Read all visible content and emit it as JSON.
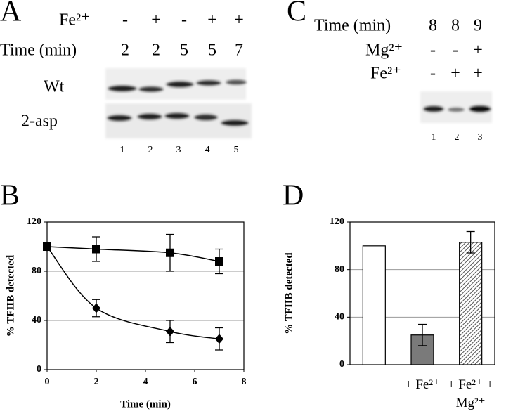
{
  "panels": {
    "A": {
      "letter": "A",
      "rows": [
        {
          "label": "Fe²⁺",
          "values": [
            "-",
            "+",
            "-",
            "+",
            "+"
          ]
        },
        {
          "label": "Time (min)",
          "values": [
            2,
            2,
            5,
            5,
            7
          ]
        }
      ],
      "blots": [
        "Wt",
        "2-asp"
      ],
      "lanes": [
        1,
        2,
        3,
        4,
        5
      ]
    },
    "C": {
      "letter": "C",
      "rows": [
        {
          "label": "Time (min)",
          "values": [
            8,
            8,
            9
          ]
        },
        {
          "label": "Mg²⁺",
          "values": [
            "-",
            "-",
            "+"
          ]
        },
        {
          "label": "Fe²⁺",
          "values": [
            "-",
            "+",
            "+"
          ]
        }
      ],
      "lanes": [
        1,
        2,
        3
      ]
    }
  },
  "chart_data": [
    {
      "type": "line",
      "panel": "B",
      "ylabel": "% TFIIB detected",
      "xlabel": "Time (min)",
      "xlim": [
        0,
        8
      ],
      "xticks": [
        0,
        2,
        4,
        6,
        8
      ],
      "ylim": [
        0,
        120
      ],
      "yticks": [
        0,
        40,
        80,
        120
      ],
      "grid": true,
      "smooth": true,
      "series": [
        {
          "marker": "square",
          "color": "#000000",
          "x": [
            0,
            2,
            5,
            7
          ],
          "values": [
            100,
            98,
            95,
            88
          ],
          "errors": [
            null,
            10,
            15,
            10
          ]
        },
        {
          "marker": "diamond",
          "color": "#000000",
          "x": [
            0,
            2,
            5,
            7
          ],
          "values": [
            100,
            50,
            31,
            25
          ],
          "errors": [
            null,
            7,
            9,
            9
          ]
        }
      ]
    },
    {
      "type": "bar",
      "panel": "D",
      "ylabel": "% TFIIB detected",
      "ylim": [
        0,
        120
      ],
      "yticks": [
        0,
        40,
        80,
        120
      ],
      "grid": true,
      "categories": [
        null,
        "+ Fe²⁺",
        "+ Fe²⁺ + Mg²⁺"
      ],
      "values": [
        100,
        25,
        103
      ],
      "errors": [
        null,
        9,
        9
      ],
      "colors": [
        "#ffffff",
        "#7a7a7a",
        "#ffffff"
      ],
      "hatch": [
        false,
        false,
        true
      ]
    }
  ]
}
